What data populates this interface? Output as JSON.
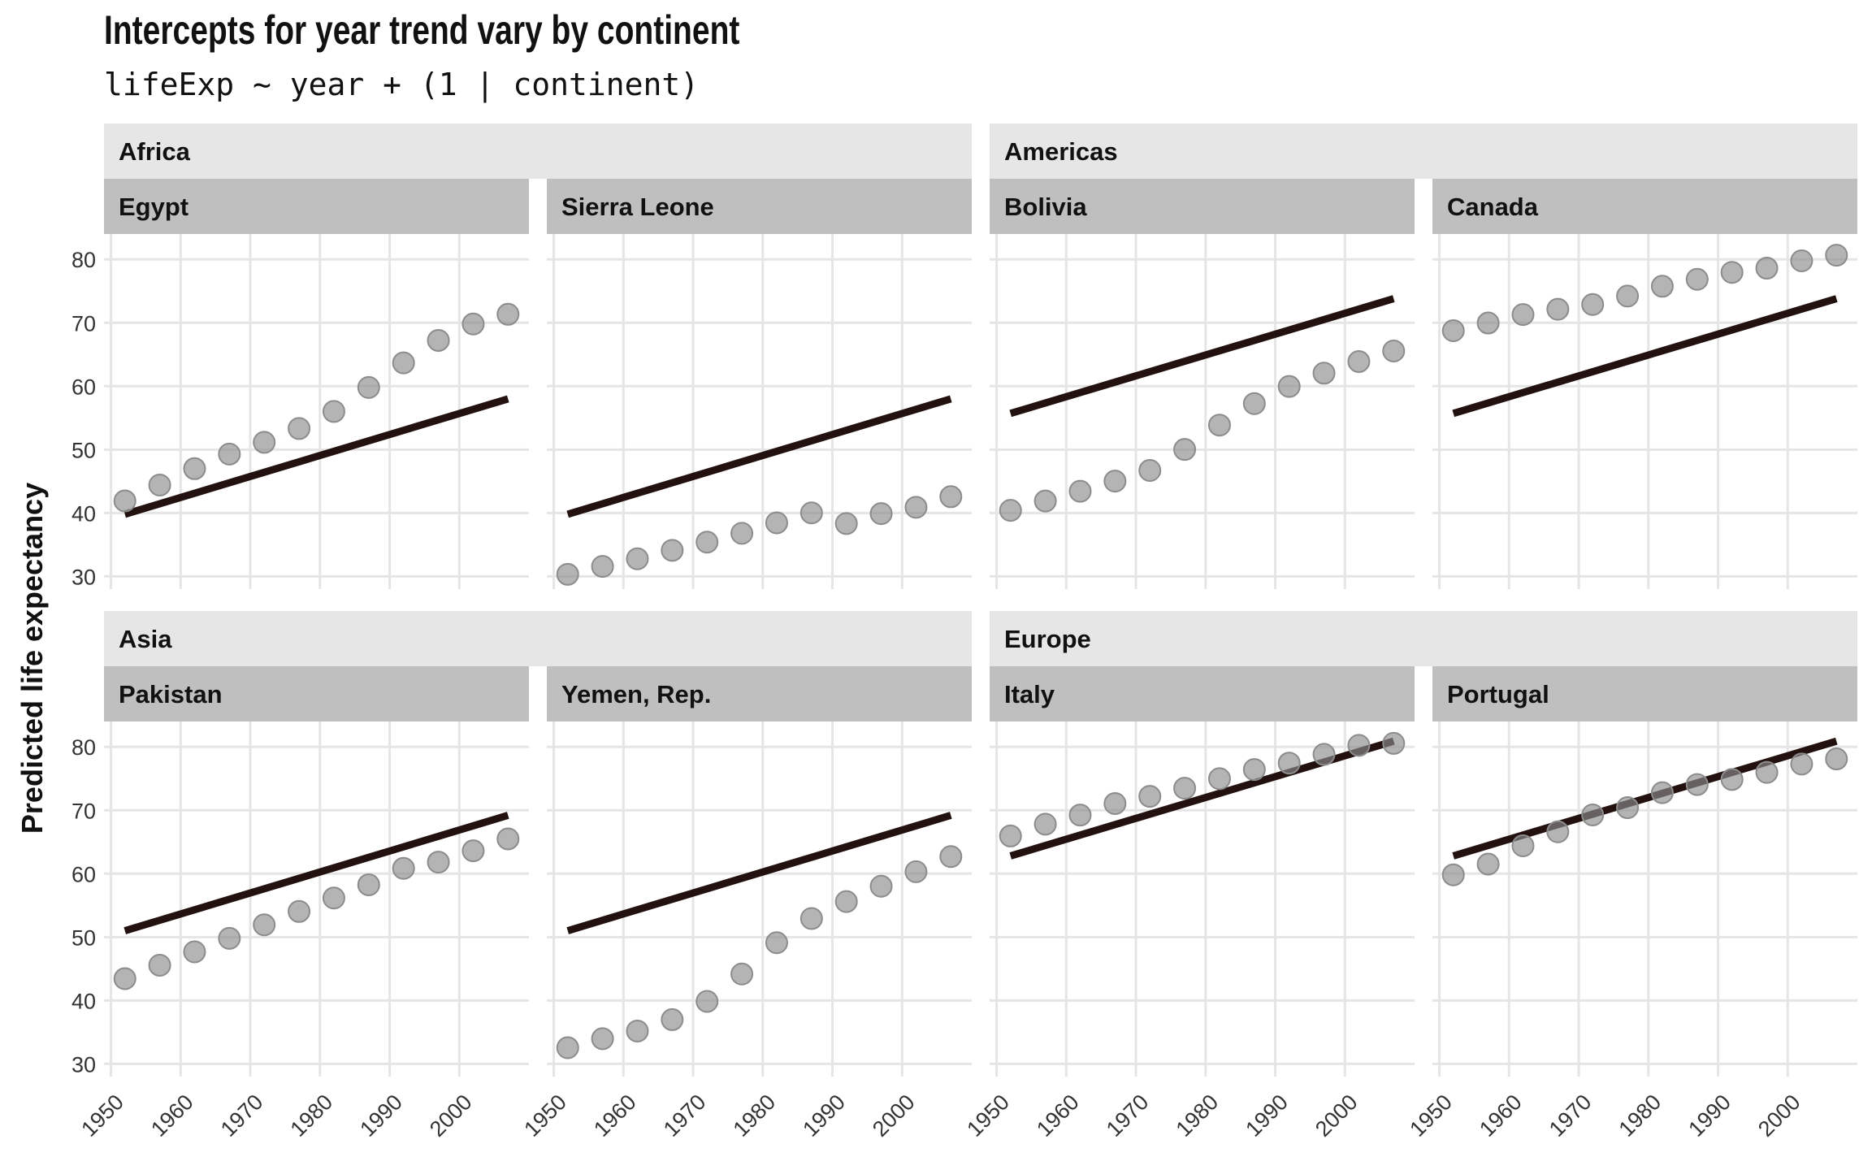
{
  "title": "Intercepts for year trend vary by continent",
  "subtitle": "lifeExp ~ year + (1 | continent)",
  "colors": {
    "point": "#8c8c8c",
    "line": "#22110f",
    "grid": "#e5e5e5",
    "strip_outer": "#e6e6e6",
    "strip_inner": "#bfbfbf"
  },
  "chart_data": {
    "type": "scatter",
    "ylabel": "Predicted life expectancy",
    "xlabel": "",
    "xlim": [
      1949,
      2010
    ],
    "ylim": [
      28,
      84
    ],
    "x_ticks": [
      "1950",
      "1960",
      "1970",
      "1980",
      "1990",
      "2000"
    ],
    "y_ticks": [
      "30",
      "40",
      "50",
      "60",
      "70",
      "80"
    ],
    "years": [
      1952,
      1957,
      1962,
      1967,
      1972,
      1977,
      1982,
      1987,
      1992,
      1997,
      2002,
      2007
    ],
    "continents": [
      {
        "name": "Africa",
        "countries": [
          {
            "name": "Egypt",
            "lifeExp": [
              41.9,
              44.4,
              46.99,
              49.29,
              51.14,
              53.32,
              56.01,
              59.8,
              63.67,
              67.22,
              69.81,
              71.34
            ],
            "line": [
              [
                1952,
                39.8
              ],
              [
                2007,
                58.0
              ]
            ]
          },
          {
            "name": "Sierra Leone",
            "lifeExp": [
              30.33,
              31.57,
              32.77,
              34.11,
              35.4,
              36.79,
              38.45,
              40.01,
              38.33,
              39.9,
              40.9,
              42.57
            ],
            "line": [
              [
                1952,
                39.8
              ],
              [
                2007,
                58.0
              ]
            ]
          }
        ]
      },
      {
        "name": "Americas",
        "countries": [
          {
            "name": "Bolivia",
            "lifeExp": [
              40.41,
              41.89,
              43.43,
              45.03,
              46.71,
              50.02,
              53.86,
              57.25,
              59.96,
              62.05,
              63.88,
              65.55
            ],
            "line": [
              [
                1952,
                55.7
              ],
              [
                2007,
                73.8
              ]
            ]
          },
          {
            "name": "Canada",
            "lifeExp": [
              68.75,
              69.96,
              71.3,
              72.13,
              72.88,
              74.21,
              75.76,
              76.86,
              77.95,
              78.61,
              79.77,
              80.65
            ],
            "line": [
              [
                1952,
                55.7
              ],
              [
                2007,
                73.8
              ]
            ]
          }
        ]
      },
      {
        "name": "Asia",
        "countries": [
          {
            "name": "Pakistan",
            "lifeExp": [
              43.44,
              45.56,
              47.67,
              49.8,
              51.93,
              54.04,
              56.16,
              58.25,
              60.84,
              61.82,
              63.61,
              65.48
            ],
            "line": [
              [
                1952,
                51.0
              ],
              [
                2007,
                69.2
              ]
            ]
          },
          {
            "name": "Yemen, Rep.",
            "lifeExp": [
              32.55,
              33.97,
              35.18,
              36.98,
              39.85,
              44.18,
              49.11,
              52.92,
              55.6,
              58.02,
              60.31,
              62.7
            ],
            "line": [
              [
                1952,
                51.0
              ],
              [
                2007,
                69.2
              ]
            ]
          }
        ]
      },
      {
        "name": "Europe",
        "countries": [
          {
            "name": "Italy",
            "lifeExp": [
              65.94,
              67.81,
              69.24,
              71.06,
              72.19,
              73.48,
              74.98,
              76.42,
              77.44,
              78.82,
              80.24,
              80.55
            ],
            "line": [
              [
                1952,
                62.8
              ],
              [
                2007,
                80.9
              ]
            ]
          },
          {
            "name": "Portugal",
            "lifeExp": [
              59.82,
              61.51,
              64.39,
              66.6,
              69.26,
              70.41,
              72.77,
              74.06,
              74.86,
              75.97,
              77.29,
              78.1
            ],
            "line": [
              [
                1952,
                62.8
              ],
              [
                2007,
                80.9
              ]
            ]
          }
        ]
      }
    ]
  }
}
